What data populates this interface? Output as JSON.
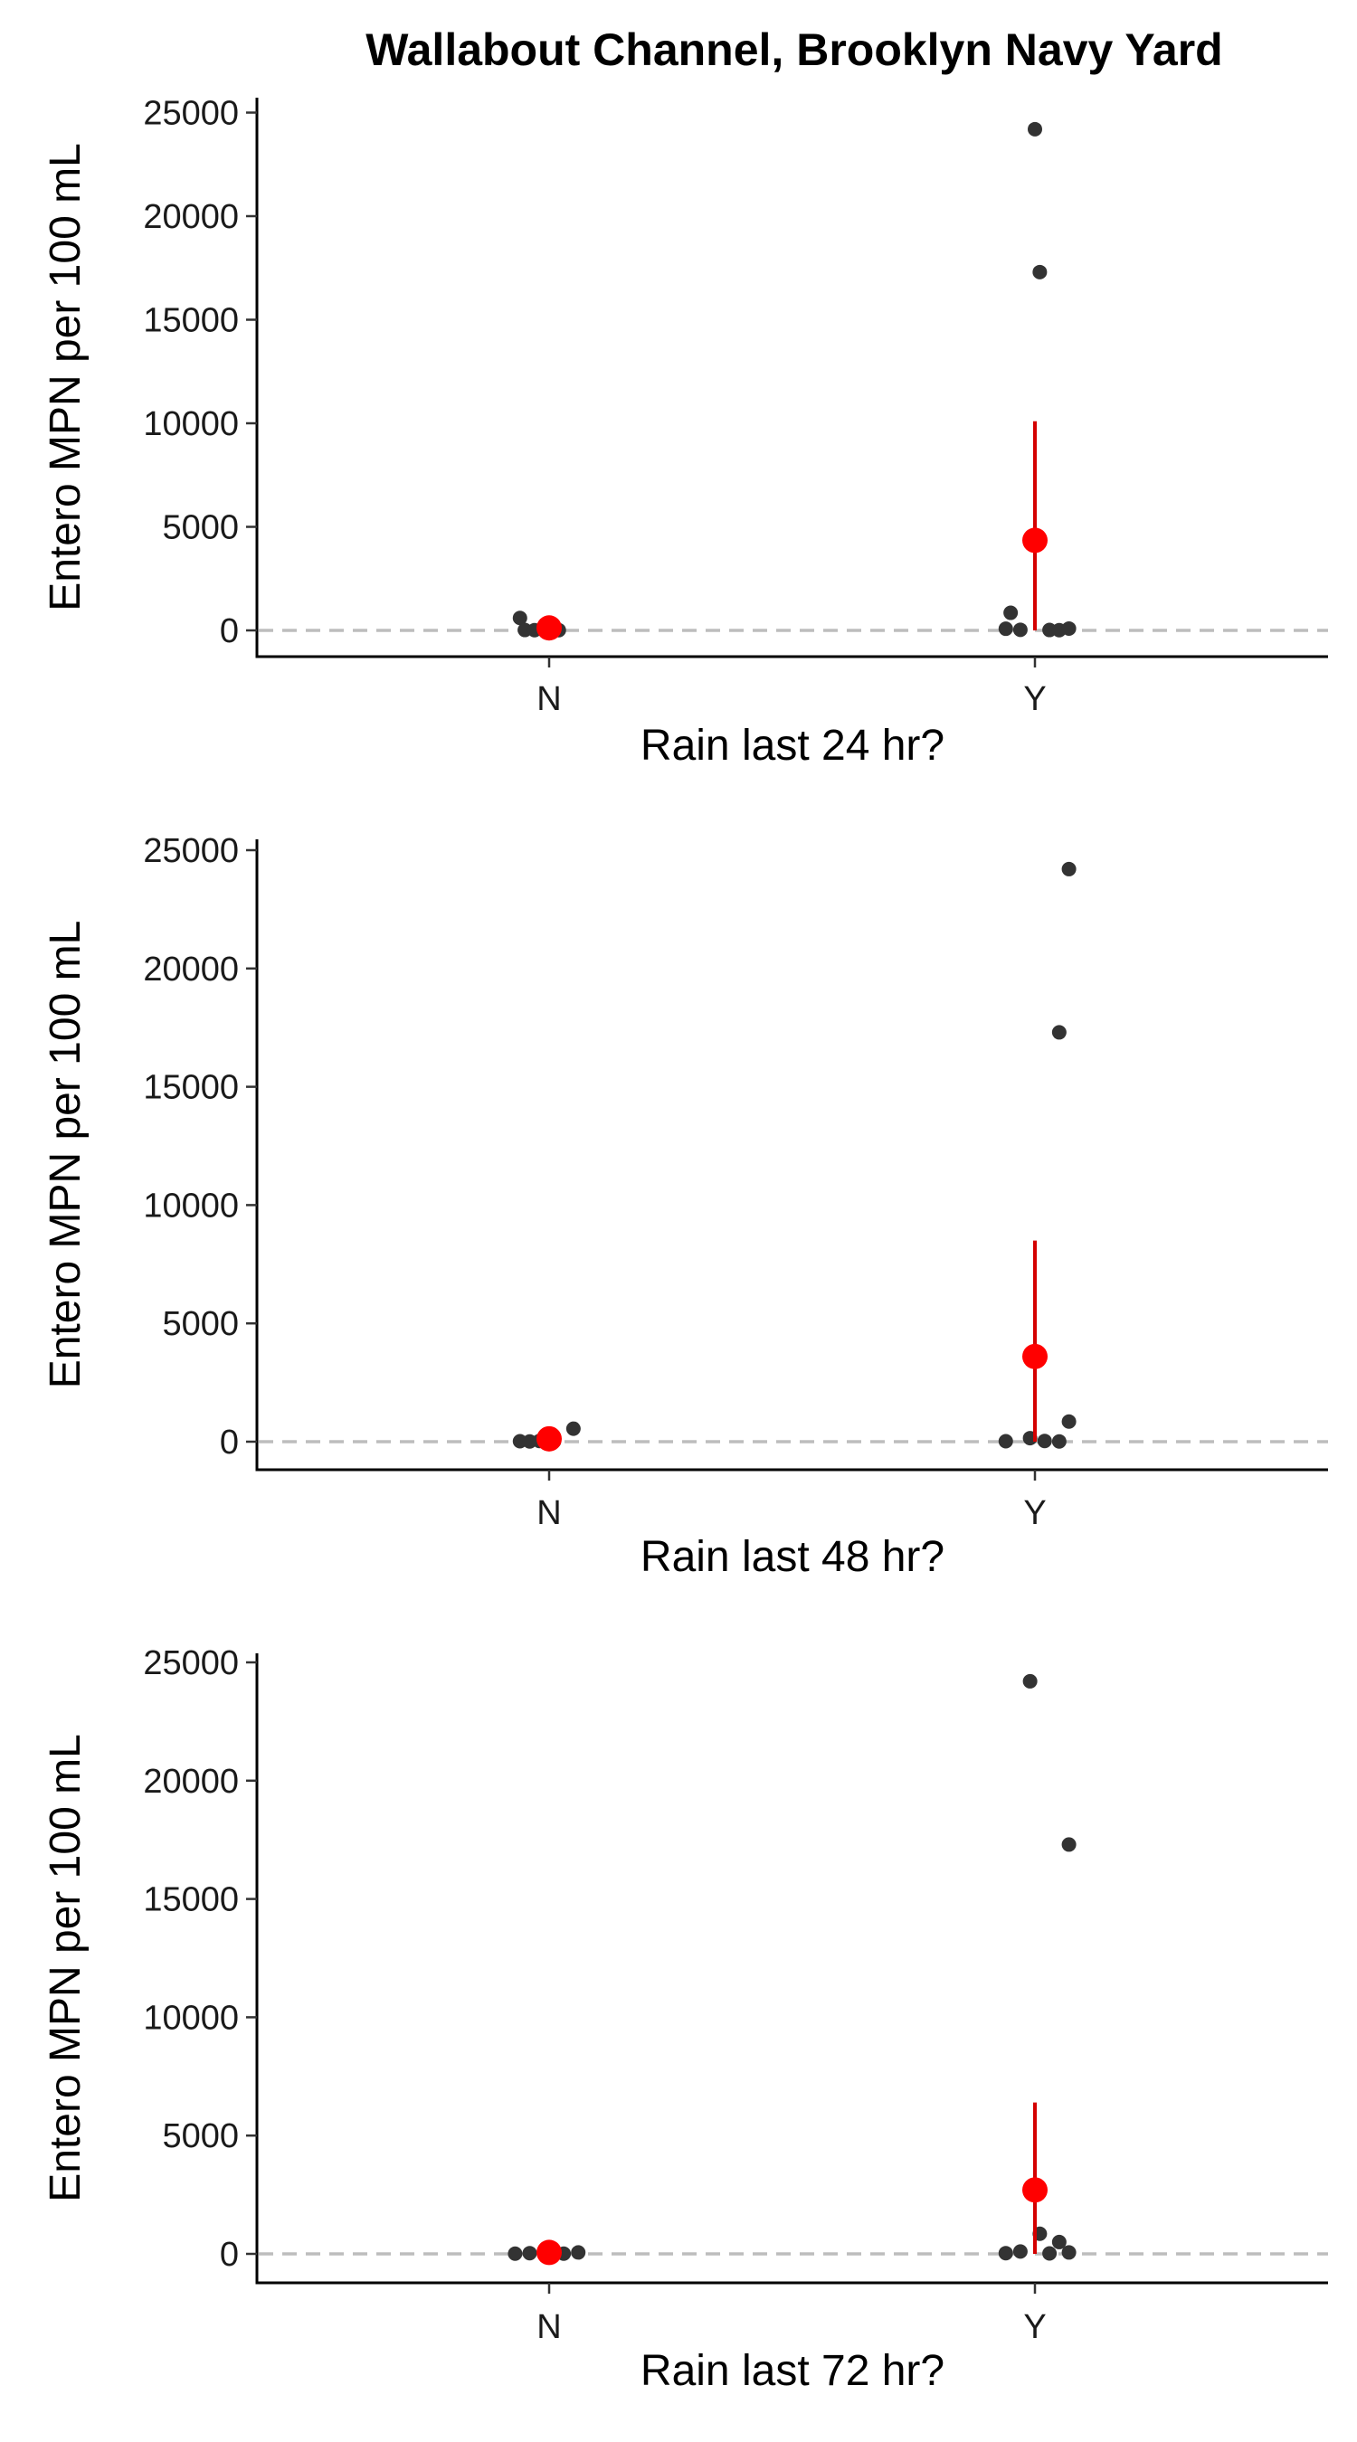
{
  "chart_data": [
    {
      "type": "scatter",
      "title": "Wallabout Channel, Brooklyn Navy Yard",
      "xlabel": "Rain last 24 hr?",
      "ylabel": "Entero MPN per 100 mL",
      "categories": [
        "N",
        "Y"
      ],
      "ylim": [
        -1300,
        25400
      ],
      "yticks": [
        0,
        5000,
        10000,
        15000,
        20000,
        25000
      ],
      "reference_line_y": 0,
      "grid": false,
      "series": [
        {
          "points": [
            {
              "category": "N",
              "offset": -0.06,
              "y": 600
            },
            {
              "category": "N",
              "offset": -0.05,
              "y": 20
            },
            {
              "category": "N",
              "offset": -0.03,
              "y": 10
            },
            {
              "category": "N",
              "offset": -0.01,
              "y": 30
            },
            {
              "category": "N",
              "offset": 0.02,
              "y": 10
            },
            {
              "category": "Y",
              "offset": 0.0,
              "y": 24200
            },
            {
              "category": "Y",
              "offset": 0.01,
              "y": 17300
            },
            {
              "category": "Y",
              "offset": -0.05,
              "y": 850
            },
            {
              "category": "Y",
              "offset": -0.06,
              "y": 80
            },
            {
              "category": "Y",
              "offset": -0.03,
              "y": 30
            },
            {
              "category": "Y",
              "offset": 0.03,
              "y": 20
            },
            {
              "category": "Y",
              "offset": 0.05,
              "y": 10
            },
            {
              "category": "Y",
              "offset": 0.07,
              "y": 90
            }
          ]
        },
        {
          "summary": [
            {
              "category": "N",
              "mean": 120,
              "low": 20,
              "high": 250
            },
            {
              "category": "Y",
              "mean": 4350,
              "low": 0,
              "high": 10100
            }
          ]
        }
      ]
    },
    {
      "type": "scatter",
      "title": "",
      "xlabel": "Rain last 48 hr?",
      "ylabel": "Entero MPN per 100 mL",
      "categories": [
        "N",
        "Y"
      ],
      "ylim": [
        -1200,
        25400
      ],
      "yticks": [
        0,
        5000,
        10000,
        15000,
        20000,
        25000
      ],
      "reference_line_y": 0,
      "grid": false,
      "series": [
        {
          "points": [
            {
              "category": "N",
              "offset": -0.06,
              "y": 20
            },
            {
              "category": "N",
              "offset": -0.04,
              "y": 10
            },
            {
              "category": "N",
              "offset": -0.02,
              "y": 30
            },
            {
              "category": "N",
              "offset": 0.01,
              "y": 10
            },
            {
              "category": "N",
              "offset": 0.05,
              "y": 550
            },
            {
              "category": "Y",
              "offset": 0.07,
              "y": 24200
            },
            {
              "category": "Y",
              "offset": 0.05,
              "y": 17300
            },
            {
              "category": "Y",
              "offset": -0.06,
              "y": 20
            },
            {
              "category": "Y",
              "offset": -0.01,
              "y": 150
            },
            {
              "category": "Y",
              "offset": 0.02,
              "y": 30
            },
            {
              "category": "Y",
              "offset": 0.05,
              "y": 10
            },
            {
              "category": "Y",
              "offset": 0.07,
              "y": 850
            }
          ]
        },
        {
          "summary": [
            {
              "category": "N",
              "mean": 120,
              "low": 20,
              "high": 250
            },
            {
              "category": "Y",
              "mean": 3600,
              "low": 0,
              "high": 8500
            }
          ]
        }
      ]
    },
    {
      "type": "scatter",
      "title": "",
      "xlabel": "Rain last 72 hr?",
      "ylabel": "Entero MPN per 100 mL",
      "categories": [
        "N",
        "Y"
      ],
      "ylim": [
        -1200,
        25400
      ],
      "yticks": [
        0,
        5000,
        10000,
        15000,
        20000,
        25000
      ],
      "reference_line_y": 0,
      "grid": false,
      "series": [
        {
          "points": [
            {
              "category": "N",
              "offset": -0.07,
              "y": 10
            },
            {
              "category": "N",
              "offset": -0.04,
              "y": 30
            },
            {
              "category": "N",
              "offset": -0.01,
              "y": 20
            },
            {
              "category": "N",
              "offset": 0.03,
              "y": 10
            },
            {
              "category": "N",
              "offset": 0.06,
              "y": 60
            },
            {
              "category": "Y",
              "offset": -0.01,
              "y": 24200
            },
            {
              "category": "Y",
              "offset": 0.07,
              "y": 17300
            },
            {
              "category": "Y",
              "offset": -0.06,
              "y": 30
            },
            {
              "category": "Y",
              "offset": -0.03,
              "y": 100
            },
            {
              "category": "Y",
              "offset": 0.01,
              "y": 850
            },
            {
              "category": "Y",
              "offset": 0.03,
              "y": 20
            },
            {
              "category": "Y",
              "offset": 0.05,
              "y": 500
            },
            {
              "category": "Y",
              "offset": 0.07,
              "y": 60
            }
          ]
        },
        {
          "summary": [
            {
              "category": "N",
              "mean": 60,
              "low": 20,
              "high": 120
            },
            {
              "category": "Y",
              "mean": 2700,
              "low": 0,
              "high": 6400
            }
          ]
        }
      ]
    }
  ]
}
